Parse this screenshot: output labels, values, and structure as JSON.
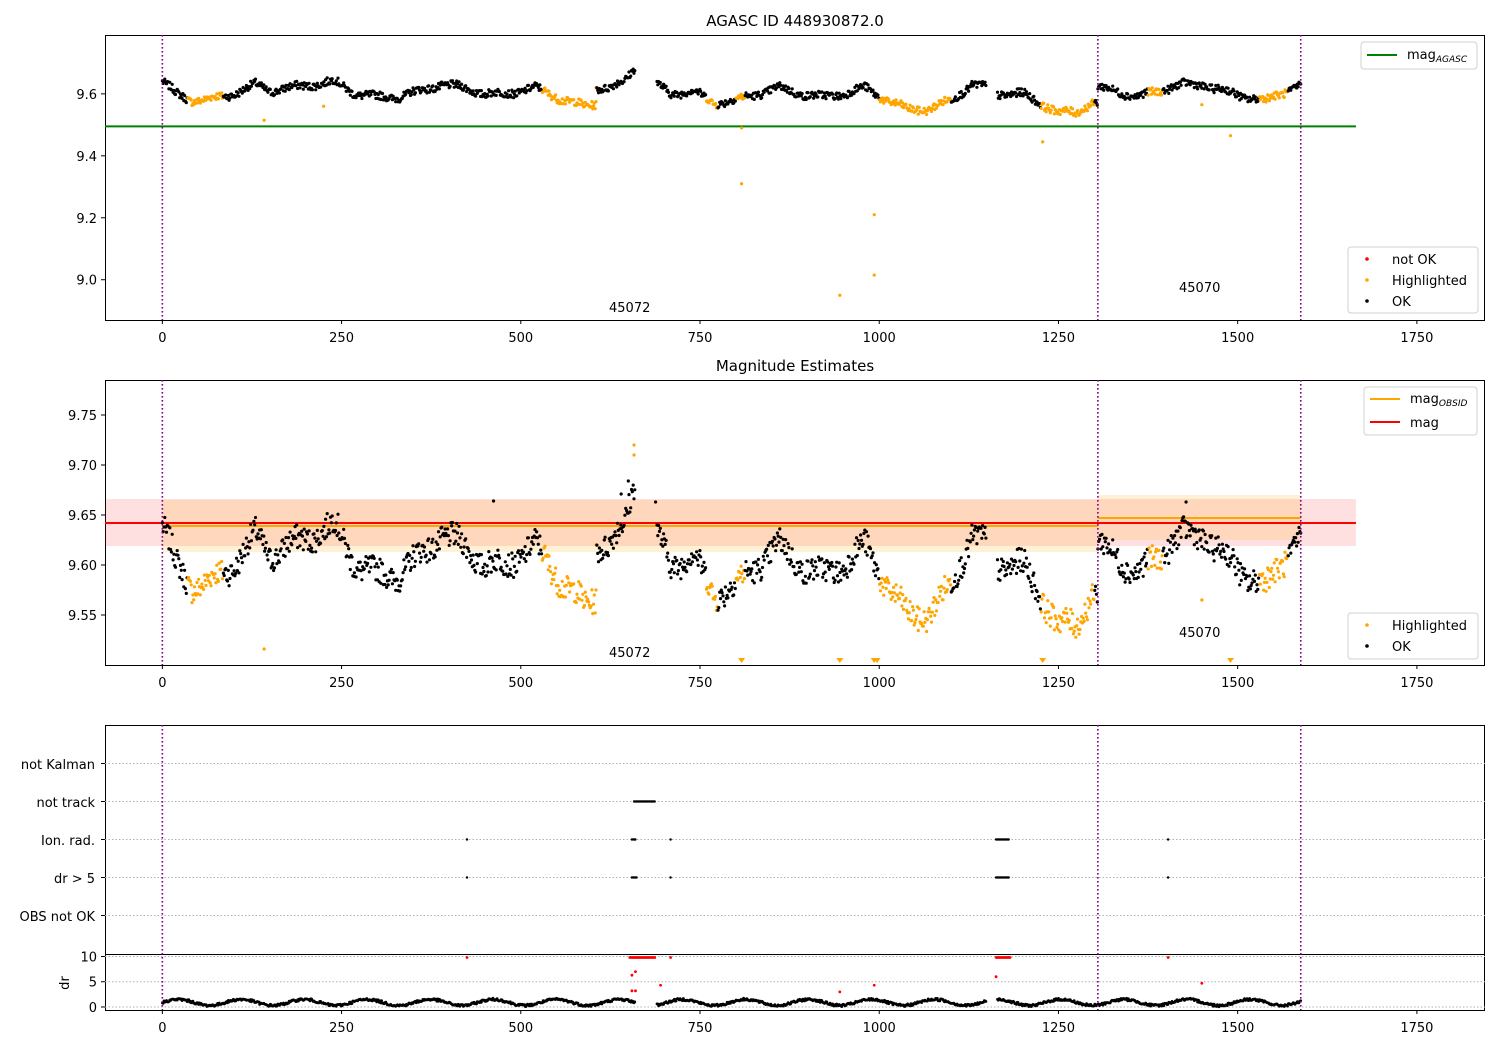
{
  "figure": {
    "panel1_title": "AGASC ID 448930872.0",
    "panel2_title": "Magnitude Estimates"
  },
  "obsids": [
    "45072",
    "45070"
  ],
  "legends": {
    "panel1": {
      "line_label": "mag",
      "line_subscript": "AGASC",
      "not_ok": "not OK",
      "highlighted": "Highlighted",
      "ok": "OK"
    },
    "panel2": {
      "mag_obsid": "mag",
      "mag_obsid_subscript": "OBSID",
      "mag": "mag",
      "highlighted": "Highlighted",
      "ok": "OK"
    }
  },
  "colors": {
    "ok": "#000000",
    "highlighted": "#ffa500",
    "not_ok": "#ff0000",
    "agasc_line": "#008000",
    "mag_line": "#ff0000",
    "obsid_line": "#ffa500",
    "obs_boundary": "#800080"
  },
  "chart_data": [
    {
      "type": "scatter",
      "title": "AGASC ID 448930872.0",
      "xlim": [
        -80,
        1845
      ],
      "ylim": [
        8.87,
        9.79
      ],
      "xticks": [
        0,
        250,
        500,
        750,
        1000,
        1250,
        1500,
        1750
      ],
      "yticks": [
        9.0,
        9.2,
        9.4,
        9.6
      ],
      "obs_boundaries": [
        0,
        1305,
        1588
      ],
      "reference_lines": [
        {
          "name": "mag_AGASC",
          "y": 9.495,
          "x": [
            -80,
            1665
          ]
        }
      ],
      "outlier_points": [
        [
          142,
          9.515
        ],
        [
          225,
          9.56
        ],
        [
          808,
          9.31
        ],
        [
          808,
          9.49
        ],
        [
          945,
          8.95
        ],
        [
          993,
          9.21
        ],
        [
          993,
          9.015
        ],
        [
          1228,
          9.445
        ],
        [
          1450,
          9.565
        ],
        [
          1490,
          9.465
        ]
      ],
      "trend_segments": [
        {
          "x": [
            0,
            20,
            40,
            60,
            80,
            100,
            130,
            150,
            180,
            210,
            240,
            270,
            300,
            330,
            360,
            390,
            420,
            450,
            480,
            520,
            560,
            590,
            605
          ],
          "y": [
            9.64,
            9.6,
            9.58,
            9.58,
            9.59,
            9.6,
            9.63,
            9.61,
            9.62,
            9.63,
            9.64,
            9.6,
            9.59,
            9.59,
            9.61,
            9.63,
            9.62,
            9.6,
            9.6,
            9.62,
            9.58,
            9.56,
            9.57
          ]
        },
        {
          "x": [
            605,
            625,
            645,
            660
          ],
          "y": [
            9.62,
            9.62,
            9.64,
            9.69
          ]
        },
        {
          "x": [
            690,
            710,
            740,
            770,
            800,
            830,
            860,
            890,
            920,
            950,
            980,
            1010,
            1040,
            1070,
            1100,
            1130,
            1150
          ],
          "y": [
            9.63,
            9.6,
            9.61,
            9.57,
            9.58,
            9.6,
            9.62,
            9.6,
            9.59,
            9.6,
            9.62,
            9.58,
            9.55,
            9.55,
            9.58,
            9.63,
            9.62
          ]
        },
        {
          "x": [
            1165,
            1180,
            1200,
            1225,
            1250,
            1275,
            1295,
            1305
          ],
          "y": [
            9.6,
            9.6,
            9.6,
            9.57,
            9.54,
            9.54,
            9.57,
            9.57
          ]
        },
        {
          "x": [
            1305,
            1330,
            1360,
            1390,
            1420,
            1450,
            1480,
            1510,
            1540,
            1560,
            1588
          ],
          "y": [
            9.62,
            9.61,
            9.59,
            9.61,
            9.63,
            9.63,
            9.61,
            9.59,
            9.58,
            9.6,
            9.63
          ]
        }
      ],
      "highlighted_ranges": [
        [
          35,
          85
        ],
        [
          530,
          605
        ],
        [
          758,
          775
        ],
        [
          800,
          812
        ],
        [
          1000,
          1100
        ],
        [
          1225,
          1300
        ],
        [
          1375,
          1395
        ],
        [
          1530,
          1570
        ]
      ]
    },
    {
      "type": "scatter",
      "title": "Magnitude Estimates",
      "xlim": [
        -80,
        1845
      ],
      "ylim": [
        9.5,
        9.785
      ],
      "xticks": [
        0,
        250,
        500,
        750,
        1000,
        1250,
        1500,
        1750
      ],
      "yticks": [
        9.55,
        9.6,
        9.65,
        9.7,
        9.75
      ],
      "obs_boundaries": [
        0,
        1305,
        1588
      ],
      "bands": [
        {
          "name": "mag",
          "x": [
            -80,
            1665
          ],
          "y": [
            9.619,
            9.666
          ]
        },
        {
          "name": "mag_OBSID",
          "x": [
            0,
            1305
          ],
          "y": [
            9.613,
            9.665
          ]
        },
        {
          "name": "mag_OBSID",
          "x": [
            1305,
            1588
          ],
          "y": [
            9.625,
            9.67
          ]
        }
      ],
      "reference_lines": [
        {
          "name": "mag",
          "y": 9.642,
          "x": [
            -80,
            1665
          ]
        },
        {
          "name": "mag_OBSID",
          "y": 9.639,
          "x": [
            0,
            1305
          ]
        },
        {
          "name": "mag_OBSID",
          "y": 9.647,
          "x": [
            1305,
            1588
          ]
        }
      ],
      "offscale_markers": [
        808,
        945,
        993,
        997,
        1228,
        1490
      ],
      "outlier_points": [
        [
          142,
          9.516
        ],
        [
          462,
          9.664
        ],
        [
          640,
          9.671
        ],
        [
          650,
          9.684
        ],
        [
          658,
          9.72
        ],
        [
          658,
          9.71
        ],
        [
          688,
          9.663
        ],
        [
          1428,
          9.663
        ],
        [
          1450,
          9.565
        ]
      ]
    },
    {
      "type": "scatter",
      "title": "",
      "xlim": [
        -80,
        1845
      ],
      "categories": [
        "not Kalman",
        "not track",
        "Ion. rad.",
        "dr > 5",
        "OBS not OK"
      ],
      "flag_points": {
        "not track": [
          [
            658,
            688
          ]
        ],
        "Ion. rad.": [
          [
            425,
            425
          ],
          [
            655,
            660
          ],
          [
            709,
            709
          ],
          [
            1163,
            1182
          ],
          [
            1403,
            1403
          ]
        ],
        "dr > 5": [
          [
            425,
            425
          ],
          [
            655,
            662
          ],
          [
            709,
            709
          ],
          [
            1163,
            1182
          ],
          [
            1403,
            1403
          ]
        ]
      },
      "obs_boundaries": [
        0,
        1305,
        1588
      ]
    },
    {
      "type": "scatter",
      "title": "",
      "ylabel": "dr",
      "xlim": [
        -80,
        1845
      ],
      "ylim": [
        -0.6,
        10.5
      ],
      "yticks": [
        0,
        5,
        10
      ],
      "xticks": [
        0,
        250,
        500,
        750,
        1000,
        1250,
        1500,
        1750
      ],
      "red_points": [
        [
          425,
          9.8
        ],
        [
          655,
          6.3
        ],
        [
          660,
          7.0
        ],
        [
          655,
          3.2
        ],
        [
          660,
          3.2
        ],
        [
          695,
          4.3
        ],
        [
          709,
          9.8
        ],
        [
          945,
          3.0
        ],
        [
          993,
          4.3
        ],
        [
          1163,
          6.0
        ],
        [
          1403,
          9.8
        ],
        [
          1450,
          4.7
        ]
      ],
      "red_saturated_ranges": [
        [
          652,
          688
        ],
        [
          1163,
          1183
        ]
      ],
      "obs_boundaries": [
        0,
        1305,
        1588
      ]
    }
  ]
}
